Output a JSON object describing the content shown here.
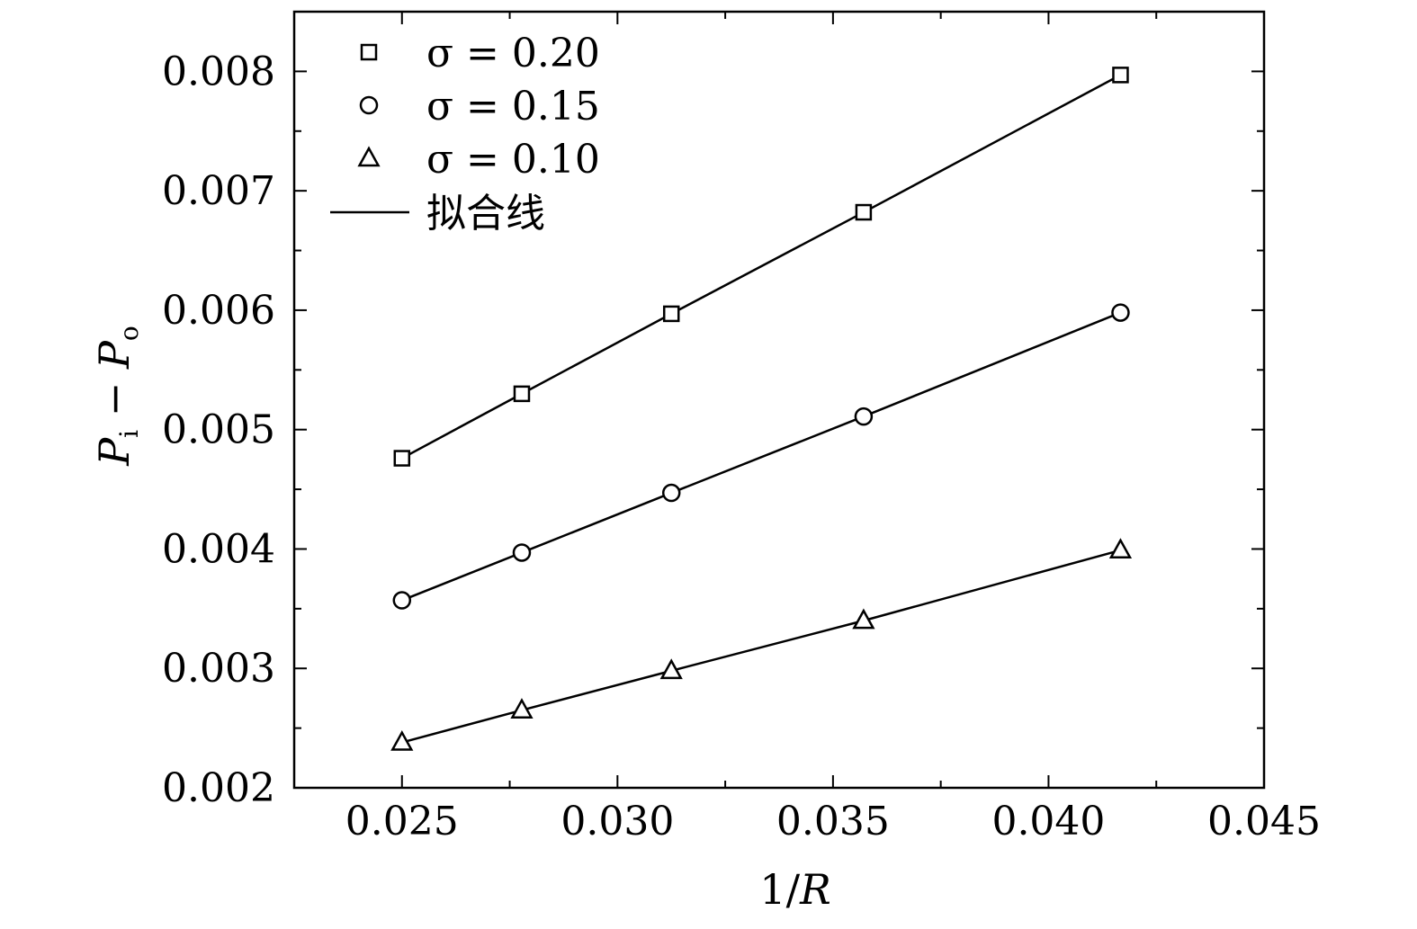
{
  "chart_data": {
    "type": "line",
    "xlabel": "1/R",
    "ylabel": "Pi − Po",
    "xlim": [
      0.0225,
      0.045
    ],
    "ylim": [
      0.002,
      0.0085
    ],
    "x_ticks": [
      "0.025",
      "0.030",
      "0.035",
      "0.040",
      "0.045"
    ],
    "y_ticks": [
      "0.002",
      "0.003",
      "0.004",
      "0.005",
      "0.006",
      "0.007",
      "0.008"
    ],
    "x": [
      0.025,
      0.02778,
      0.03125,
      0.03571,
      0.04167
    ],
    "series": [
      {
        "name": "σ = 0.20",
        "marker": "square",
        "values": [
          0.00476,
          0.0053,
          0.00597,
          0.00682,
          0.00797
        ]
      },
      {
        "name": "σ = 0.15",
        "marker": "circle",
        "values": [
          0.00357,
          0.00397,
          0.00447,
          0.00511,
          0.00598
        ]
      },
      {
        "name": "σ = 0.10",
        "marker": "triangle",
        "values": [
          0.00238,
          0.00265,
          0.00298,
          0.0034,
          0.00399
        ]
      }
    ],
    "fit_line_label": "拟合线",
    "legend_position": "top-left",
    "grid": false,
    "colors": {
      "line": "#000000",
      "marker_fill": "#ffffff"
    }
  }
}
